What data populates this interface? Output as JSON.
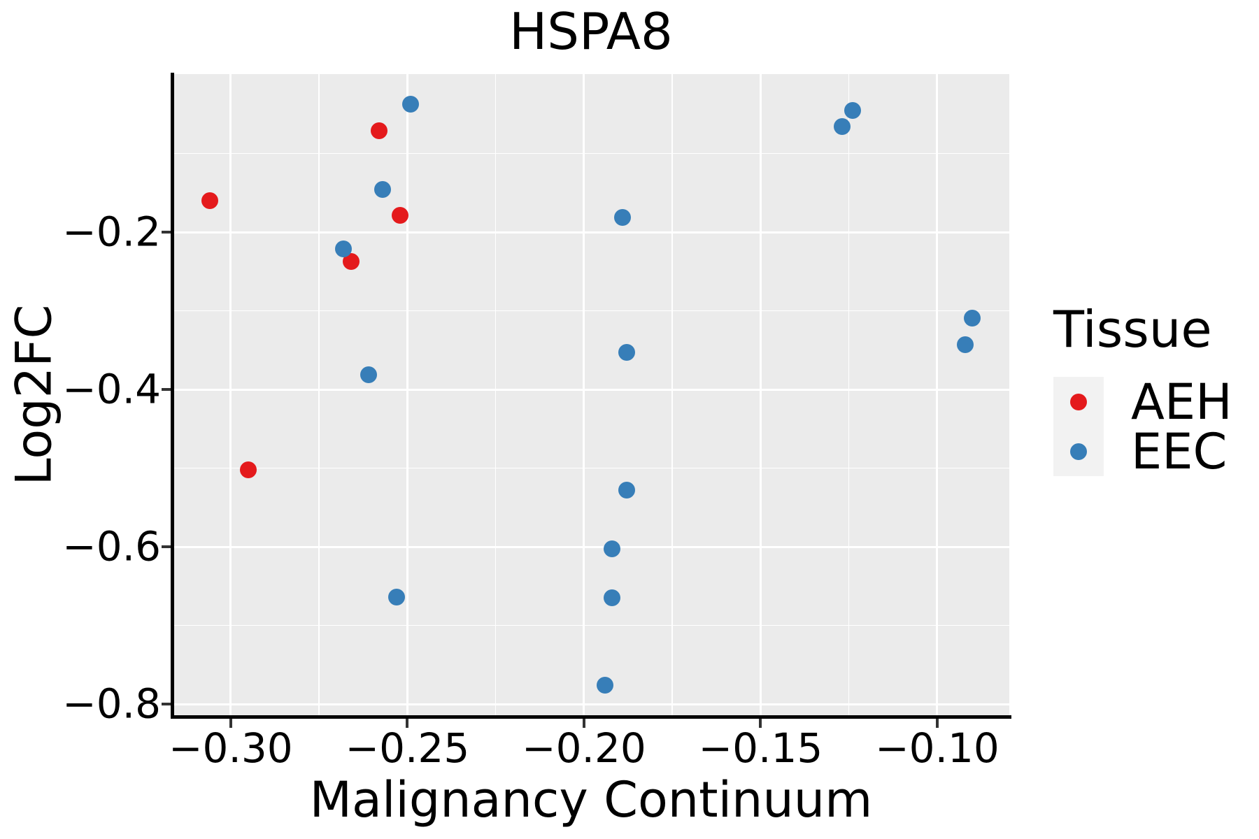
{
  "title": "HSPA8",
  "axes": {
    "x": {
      "label": "Malignancy Continuum",
      "range": [
        -0.3164,
        -0.0796
      ],
      "major_ticks": [
        {
          "value": -0.3,
          "label": "−0.30"
        },
        {
          "value": -0.25,
          "label": "−0.25"
        },
        {
          "value": -0.2,
          "label": "−0.20"
        },
        {
          "value": -0.15,
          "label": "−0.15"
        },
        {
          "value": -0.1,
          "label": "−0.10"
        }
      ],
      "minor_gridlines": [
        -0.275,
        -0.225,
        -0.175,
        -0.125
      ]
    },
    "y": {
      "label": "Log2FC",
      "range": [
        -0.816,
        0.001
      ],
      "major_ticks": [
        {
          "value": -0.2,
          "label": "−0.2"
        },
        {
          "value": -0.4,
          "label": "−0.4"
        },
        {
          "value": -0.6,
          "label": "−0.6"
        },
        {
          "value": -0.8,
          "label": "−0.8"
        }
      ],
      "minor_gridlines": [
        -0.1,
        -0.3,
        -0.5,
        -0.7
      ]
    }
  },
  "legend": {
    "title": "Tissue",
    "items": [
      {
        "label": "AEH",
        "color": "#E41A1C"
      },
      {
        "label": "EEC",
        "color": "#377EB8"
      }
    ]
  },
  "colors": {
    "panel_background": "#EBEBEB",
    "gridline": "#FFFFFF",
    "axis": "#000000",
    "aeh": "#E41A1C",
    "eec": "#377EB8"
  },
  "chart_data": {
    "type": "scatter",
    "title": "HSPA8",
    "xlabel": "Malignancy Continuum",
    "ylabel": "Log2FC",
    "xlim": [
      -0.3164,
      -0.0796
    ],
    "ylim": [
      -0.816,
      0.001
    ],
    "x_major_breaks": [
      -0.3,
      -0.25,
      -0.2,
      -0.15,
      -0.1
    ],
    "y_major_breaks": [
      -0.2,
      -0.4,
      -0.6,
      -0.8
    ],
    "grid": true,
    "legend_title": "Tissue",
    "legend_position": "right",
    "series": [
      {
        "name": "AEH",
        "color": "#E41A1C",
        "points": [
          [
            -0.306,
            -0.16
          ],
          [
            -0.295,
            -0.502
          ],
          [
            -0.258,
            -0.071
          ],
          [
            -0.252,
            -0.179
          ],
          [
            -0.266,
            -0.237
          ]
        ]
      },
      {
        "name": "EEC",
        "color": "#377EB8",
        "points": [
          [
            -0.249,
            -0.037
          ],
          [
            -0.257,
            -0.146
          ],
          [
            -0.268,
            -0.221
          ],
          [
            -0.261,
            -0.381
          ],
          [
            -0.253,
            -0.664
          ],
          [
            -0.189,
            -0.181
          ],
          [
            -0.188,
            -0.353
          ],
          [
            -0.188,
            -0.528
          ],
          [
            -0.192,
            -0.603
          ],
          [
            -0.192,
            -0.665
          ],
          [
            -0.194,
            -0.776
          ],
          [
            -0.124,
            -0.045
          ],
          [
            -0.127,
            -0.066
          ],
          [
            -0.09,
            -0.309
          ],
          [
            -0.092,
            -0.343
          ]
        ]
      }
    ]
  }
}
